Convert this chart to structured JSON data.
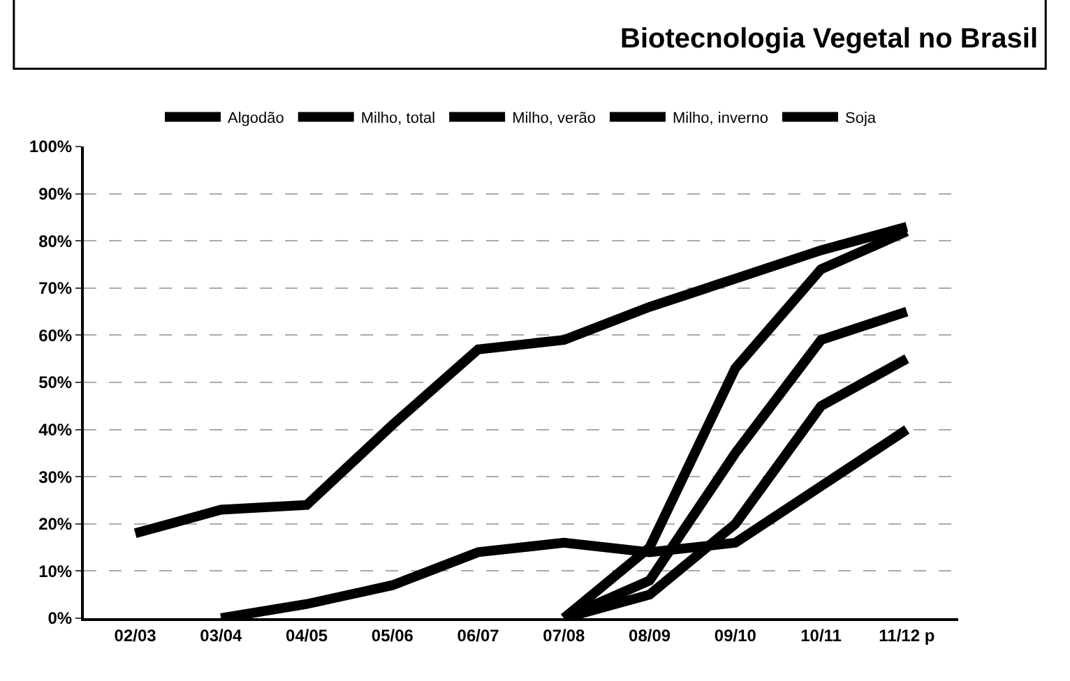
{
  "chart_data": {
    "type": "line",
    "title": "Biotecnologia Vegetal no Brasil",
    "categories": [
      "02/03",
      "03/04",
      "04/05",
      "05/06",
      "06/07",
      "07/08",
      "08/09",
      "09/10",
      "10/11",
      "11/12 p"
    ],
    "series": [
      {
        "name": "Algodão",
        "color": "#000000",
        "values": [
          null,
          0,
          3,
          7,
          14,
          16,
          14,
          16,
          28,
          40
        ]
      },
      {
        "name": "Milho, total",
        "color": "#000000",
        "values": [
          null,
          null,
          null,
          null,
          null,
          0,
          8,
          35,
          59,
          65
        ]
      },
      {
        "name": "Milho, verão",
        "color": "#000000",
        "values": [
          null,
          null,
          null,
          null,
          null,
          0,
          15,
          53,
          74,
          82
        ]
      },
      {
        "name": "Milho, inverno",
        "color": "#000000",
        "values": [
          null,
          null,
          null,
          null,
          null,
          0,
          5,
          20,
          45,
          55
        ]
      },
      {
        "name": "Soja",
        "color": "#000000",
        "values": [
          18,
          23,
          24,
          41,
          57,
          59,
          66,
          72,
          78,
          83
        ]
      }
    ],
    "ylim": [
      0,
      100
    ],
    "yticks": [
      {
        "value": 0,
        "label": "0%"
      },
      {
        "value": 10,
        "label": "10%"
      },
      {
        "value": 20,
        "label": "20%"
      },
      {
        "value": 30,
        "label": "30%"
      },
      {
        "value": 40,
        "label": "40%"
      },
      {
        "value": 50,
        "label": "50%"
      },
      {
        "value": 60,
        "label": "60%"
      },
      {
        "value": 70,
        "label": "70%"
      },
      {
        "value": 80,
        "label": "80%"
      },
      {
        "value": 90,
        "label": "90%"
      },
      {
        "value": 100,
        "label": "100%"
      }
    ],
    "grid": "y",
    "legend": "top",
    "marker": "none",
    "line_style": "solid"
  }
}
